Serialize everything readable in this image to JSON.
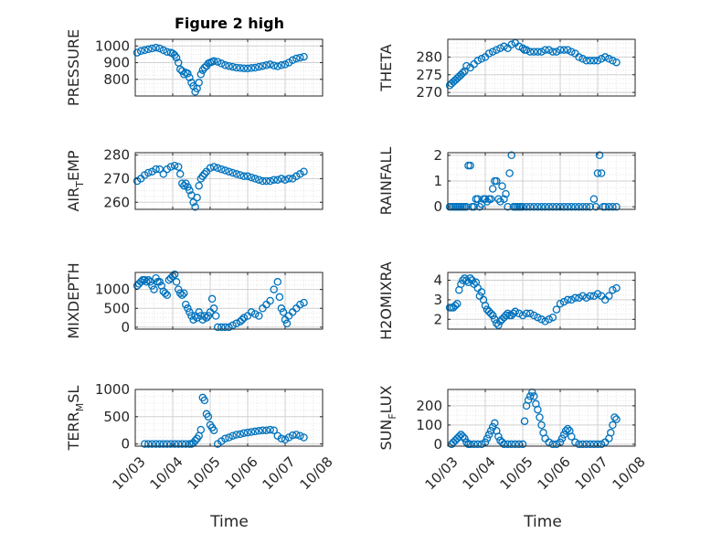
{
  "figure": {
    "title": "Figure 2 high",
    "xlabel_left": "Time",
    "xlabel_right": "Time"
  },
  "chart_data": [
    {
      "type": "scatter",
      "ylabel": "PRESSURE",
      "xlim": [
        0,
        5
      ],
      "xticks": [
        "10/03",
        "10/04",
        "10/05",
        "10/06",
        "10/07",
        "10/08"
      ],
      "ylim": [
        700,
        1040
      ],
      "yticks": [
        800,
        900,
        1000
      ],
      "grid": true,
      "marker_color": "#0072BD",
      "x": [
        0.05,
        0.15,
        0.25,
        0.35,
        0.45,
        0.55,
        0.65,
        0.75,
        0.85,
        0.95,
        1.0,
        1.05,
        1.1,
        1.15,
        1.2,
        1.25,
        1.3,
        1.35,
        1.4,
        1.45,
        1.5,
        1.55,
        1.6,
        1.65,
        1.7,
        1.75,
        1.8,
        1.85,
        1.9,
        1.95,
        2.0,
        2.05,
        2.1,
        2.2,
        2.3,
        2.4,
        2.5,
        2.6,
        2.7,
        2.8,
        2.9,
        3.0,
        3.1,
        3.2,
        3.3,
        3.4,
        3.5,
        3.6,
        3.7,
        3.8,
        3.9,
        4.0,
        4.1,
        4.2,
        4.3,
        4.4,
        4.5
      ],
      "y": [
        960,
        970,
        975,
        980,
        985,
        990,
        985,
        975,
        965,
        960,
        955,
        945,
        930,
        900,
        860,
        850,
        830,
        840,
        835,
        810,
        780,
        760,
        725,
        745,
        780,
        830,
        855,
        870,
        880,
        895,
        900,
        905,
        910,
        905,
        895,
        885,
        880,
        875,
        870,
        868,
        866,
        865,
        868,
        870,
        875,
        880,
        885,
        890,
        882,
        878,
        885,
        890,
        900,
        915,
        925,
        930,
        935
      ]
    },
    {
      "type": "scatter",
      "ylabel": "THETA",
      "xlim": [
        0,
        5
      ],
      "xticks": [
        "10/03",
        "10/04",
        "10/05",
        "10/06",
        "10/07",
        "10/08"
      ],
      "ylim": [
        269,
        285
      ],
      "yticks": [
        270,
        275,
        280
      ],
      "grid": true,
      "marker_color": "#0072BD",
      "x": [
        0.05,
        0.1,
        0.15,
        0.2,
        0.25,
        0.3,
        0.35,
        0.4,
        0.45,
        0.5,
        0.6,
        0.7,
        0.8,
        0.9,
        1.0,
        1.1,
        1.2,
        1.3,
        1.4,
        1.5,
        1.6,
        1.7,
        1.8,
        1.9,
        2.0,
        2.05,
        2.1,
        2.2,
        2.3,
        2.4,
        2.5,
        2.6,
        2.7,
        2.8,
        2.9,
        3.0,
        3.1,
        3.2,
        3.3,
        3.4,
        3.5,
        3.6,
        3.7,
        3.8,
        3.9,
        4.0,
        4.1,
        4.2,
        4.3,
        4.4,
        4.5
      ],
      "y": [
        272,
        272.5,
        273,
        273.5,
        274,
        274.5,
        275,
        275.5,
        276,
        277.5,
        277,
        278,
        279,
        279.5,
        280,
        281,
        281.5,
        282,
        282.5,
        283,
        282.5,
        283.5,
        284,
        283,
        282.5,
        282,
        282,
        281.5,
        281.5,
        281.5,
        281.5,
        282,
        282,
        281.5,
        281.5,
        282,
        282,
        282,
        281.5,
        281,
        280,
        279.5,
        279,
        279,
        279,
        279,
        279.5,
        280,
        279.5,
        279,
        278.5
      ]
    },
    {
      "type": "scatter",
      "ylabel": "AIR_TEMP",
      "xlim": [
        0,
        5
      ],
      "xticks": [
        "10/03",
        "10/04",
        "10/05",
        "10/06",
        "10/07",
        "10/08"
      ],
      "ylim": [
        257,
        281
      ],
      "yticks": [
        260,
        270,
        280
      ],
      "grid": true,
      "marker_color": "#0072BD",
      "x": [
        0.05,
        0.15,
        0.25,
        0.35,
        0.45,
        0.55,
        0.65,
        0.75,
        0.85,
        0.95,
        1.05,
        1.15,
        1.2,
        1.25,
        1.3,
        1.35,
        1.4,
        1.45,
        1.5,
        1.55,
        1.6,
        1.65,
        1.7,
        1.75,
        1.8,
        1.85,
        1.9,
        2.0,
        2.1,
        2.2,
        2.3,
        2.4,
        2.5,
        2.6,
        2.7,
        2.8,
        2.9,
        3.0,
        3.1,
        3.2,
        3.3,
        3.4,
        3.5,
        3.6,
        3.7,
        3.8,
        3.9,
        4.0,
        4.1,
        4.2,
        4.3,
        4.4,
        4.5
      ],
      "y": [
        269,
        270,
        271.5,
        272.5,
        273,
        274,
        274,
        272,
        274,
        275,
        275.5,
        275,
        272,
        268,
        267,
        268,
        266.5,
        265,
        263,
        260,
        258,
        262,
        267,
        270,
        271,
        272,
        273,
        274.5,
        275,
        274.5,
        274,
        273.5,
        273,
        272.5,
        272,
        271.5,
        271,
        271,
        270.5,
        270,
        269.5,
        269,
        269,
        269,
        269.5,
        269.5,
        270,
        269.5,
        270,
        270,
        271,
        272,
        273
      ]
    },
    {
      "type": "scatter",
      "ylabel": "RAINFALL",
      "xlim": [
        0,
        5
      ],
      "xticks": [
        "10/03",
        "10/04",
        "10/05",
        "10/06",
        "10/07",
        "10/08"
      ],
      "ylim": [
        -0.1,
        2.1
      ],
      "yticks": [
        0,
        1,
        2
      ],
      "grid": true,
      "marker_color": "#0072BD",
      "x": [
        0.05,
        0.1,
        0.15,
        0.2,
        0.25,
        0.3,
        0.35,
        0.4,
        0.45,
        0.5,
        0.55,
        0.6,
        0.65,
        0.7,
        0.75,
        0.8,
        0.85,
        0.9,
        0.95,
        1.0,
        1.05,
        1.1,
        1.15,
        1.2,
        1.25,
        1.3,
        1.35,
        1.4,
        1.45,
        1.5,
        1.55,
        1.6,
        1.65,
        1.7,
        1.75,
        1.8,
        1.85,
        1.9,
        1.95,
        2.0,
        2.1,
        2.2,
        2.3,
        2.4,
        2.5,
        2.6,
        2.7,
        2.8,
        2.9,
        3.0,
        3.1,
        3.2,
        3.3,
        3.4,
        3.5,
        3.6,
        3.7,
        3.8,
        3.9,
        3.95,
        4.0,
        4.05,
        4.1,
        4.15,
        4.2,
        4.3,
        4.4,
        4.5
      ],
      "y": [
        0,
        0,
        0,
        0,
        0,
        0,
        0,
        0,
        0,
        0,
        1.6,
        1.6,
        0,
        0,
        0.3,
        0.3,
        0,
        0.1,
        0.3,
        0.3,
        0.2,
        0.3,
        0.3,
        0.7,
        1.0,
        1.0,
        0.3,
        0.2,
        0.8,
        0.3,
        0.5,
        0,
        1.3,
        2.0,
        0,
        0,
        0,
        0,
        0,
        0,
        0,
        0,
        0,
        0,
        0,
        0,
        0,
        0,
        0,
        0,
        0,
        0,
        0,
        0,
        0,
        0,
        0,
        0,
        0.3,
        0,
        1.3,
        2.0,
        1.3,
        0,
        0,
        0,
        0,
        0
      ]
    },
    {
      "type": "scatter",
      "ylabel": "MIXDEPTH",
      "xlim": [
        0,
        5
      ],
      "xticks": [
        "10/03",
        "10/04",
        "10/05",
        "10/06",
        "10/07",
        "10/08"
      ],
      "ylim": [
        -50,
        1450
      ],
      "yticks": [
        0,
        500,
        1000
      ],
      "grid": true,
      "marker_color": "#0072BD",
      "x": [
        0.05,
        0.1,
        0.15,
        0.2,
        0.25,
        0.3,
        0.35,
        0.4,
        0.45,
        0.5,
        0.55,
        0.6,
        0.65,
        0.7,
        0.75,
        0.8,
        0.85,
        0.9,
        0.95,
        1.0,
        1.05,
        1.1,
        1.15,
        1.2,
        1.25,
        1.3,
        1.35,
        1.4,
        1.45,
        1.5,
        1.55,
        1.6,
        1.65,
        1.7,
        1.75,
        1.8,
        1.85,
        1.9,
        1.95,
        2.0,
        2.05,
        2.1,
        2.15,
        2.2,
        2.3,
        2.4,
        2.5,
        2.6,
        2.7,
        2.8,
        2.85,
        2.9,
        3.0,
        3.1,
        3.2,
        3.3,
        3.4,
        3.5,
        3.6,
        3.7,
        3.8,
        3.85,
        3.9,
        3.95,
        4.0,
        4.05,
        4.1,
        4.2,
        4.3,
        4.4,
        4.5
      ],
      "y": [
        1100,
        1150,
        1200,
        1250,
        1250,
        1200,
        1250,
        1200,
        1100,
        1000,
        1300,
        1200,
        1200,
        1100,
        950,
        900,
        850,
        1250,
        1300,
        1350,
        1400,
        1200,
        1000,
        900,
        850,
        900,
        600,
        500,
        400,
        300,
        200,
        300,
        250,
        400,
        300,
        200,
        300,
        250,
        300,
        400,
        750,
        500,
        300,
        0,
        0,
        0,
        0,
        50,
        100,
        150,
        200,
        250,
        300,
        400,
        350,
        300,
        500,
        600,
        700,
        1000,
        1200,
        800,
        500,
        400,
        200,
        100,
        300,
        400,
        500,
        600,
        650
      ]
    },
    {
      "type": "scatter",
      "ylabel": "H2OMIXRA",
      "xlim": [
        0,
        5
      ],
      "xticks": [
        "10/03",
        "10/04",
        "10/05",
        "10/06",
        "10/07",
        "10/08"
      ],
      "ylim": [
        1.5,
        4.4
      ],
      "yticks": [
        2,
        3,
        4
      ],
      "grid": true,
      "marker_color": "#0072BD",
      "x": [
        0.05,
        0.1,
        0.15,
        0.2,
        0.25,
        0.3,
        0.35,
        0.4,
        0.45,
        0.5,
        0.55,
        0.6,
        0.65,
        0.7,
        0.75,
        0.8,
        0.85,
        0.9,
        0.95,
        1.0,
        1.05,
        1.1,
        1.15,
        1.2,
        1.25,
        1.3,
        1.35,
        1.4,
        1.45,
        1.5,
        1.55,
        1.6,
        1.65,
        1.7,
        1.75,
        1.8,
        1.9,
        2.0,
        2.1,
        2.2,
        2.3,
        2.4,
        2.5,
        2.6,
        2.7,
        2.8,
        2.9,
        3.0,
        3.1,
        3.2,
        3.3,
        3.4,
        3.5,
        3.6,
        3.7,
        3.8,
        3.9,
        4.0,
        4.1,
        4.2,
        4.3,
        4.4,
        4.5
      ],
      "y": [
        2.6,
        2.6,
        2.6,
        2.7,
        2.8,
        3.5,
        3.8,
        4.0,
        4.1,
        4.0,
        3.9,
        4.1,
        4.0,
        3.8,
        3.9,
        3.6,
        3.2,
        3.4,
        3.0,
        2.7,
        2.5,
        2.4,
        2.3,
        2.2,
        2.0,
        1.8,
        1.7,
        1.9,
        2.0,
        2.1,
        2.2,
        2.3,
        2.2,
        2.2,
        2.3,
        2.4,
        2.3,
        2.2,
        2.3,
        2.3,
        2.2,
        2.1,
        2.0,
        1.9,
        2.0,
        2.1,
        2.5,
        2.8,
        2.9,
        3.0,
        3.0,
        3.1,
        3.1,
        3.2,
        3.1,
        3.2,
        3.2,
        3.3,
        3.2,
        3.0,
        3.2,
        3.5,
        3.6
      ]
    },
    {
      "type": "scatter",
      "ylabel": "TERR_MSL",
      "xlim": [
        0,
        5
      ],
      "xticks": [
        "10/03",
        "10/04",
        "10/05",
        "10/06",
        "10/07",
        "10/08"
      ],
      "ylim": [
        -40,
        1000
      ],
      "yticks": [
        0,
        500,
        1000
      ],
      "grid": true,
      "marker_color": "#0072BD",
      "x": [
        0.25,
        0.35,
        0.45,
        0.55,
        0.65,
        0.75,
        0.85,
        0.95,
        1.05,
        1.15,
        1.25,
        1.35,
        1.45,
        1.5,
        1.55,
        1.6,
        1.65,
        1.7,
        1.75,
        1.8,
        1.85,
        1.9,
        1.95,
        2.0,
        2.05,
        2.1,
        2.2,
        2.3,
        2.4,
        2.5,
        2.6,
        2.7,
        2.8,
        2.9,
        3.0,
        3.1,
        3.2,
        3.3,
        3.4,
        3.5,
        3.6,
        3.7,
        3.8,
        3.9,
        4.0,
        4.1,
        4.2,
        4.3,
        4.4,
        4.5
      ],
      "y": [
        0,
        0,
        0,
        0,
        0,
        0,
        0,
        0,
        0,
        0,
        0,
        0,
        0,
        0,
        20,
        60,
        100,
        150,
        260,
        850,
        800,
        550,
        500,
        350,
        300,
        250,
        0,
        50,
        100,
        120,
        150,
        170,
        180,
        200,
        210,
        220,
        230,
        240,
        250,
        250,
        260,
        250,
        150,
        100,
        80,
        120,
        160,
        170,
        150,
        120
      ]
    },
    {
      "type": "scatter",
      "ylabel": "SUN_FLUX",
      "xlim": [
        0,
        5
      ],
      "xticks": [
        "10/03",
        "10/04",
        "10/05",
        "10/06",
        "10/07",
        "10/08"
      ],
      "ylim": [
        -10,
        285
      ],
      "yticks": [
        0,
        100,
        200
      ],
      "grid": true,
      "marker_color": "#0072BD",
      "x": [
        0.1,
        0.15,
        0.2,
        0.25,
        0.3,
        0.35,
        0.4,
        0.45,
        0.5,
        0.55,
        0.6,
        0.7,
        0.8,
        0.9,
        1.0,
        1.05,
        1.1,
        1.15,
        1.2,
        1.25,
        1.3,
        1.35,
        1.4,
        1.45,
        1.5,
        1.6,
        1.7,
        1.8,
        1.9,
        2.0,
        2.05,
        2.1,
        2.15,
        2.2,
        2.25,
        2.3,
        2.35,
        2.4,
        2.45,
        2.5,
        2.55,
        2.6,
        2.7,
        2.8,
        2.9,
        3.0,
        3.05,
        3.1,
        3.15,
        3.2,
        3.25,
        3.3,
        3.4,
        3.5,
        3.6,
        3.7,
        3.8,
        3.9,
        4.0,
        4.1,
        4.2,
        4.3,
        4.35,
        4.4,
        4.45,
        4.5
      ],
      "y": [
        0,
        10,
        20,
        30,
        40,
        50,
        40,
        30,
        10,
        0,
        0,
        0,
        0,
        0,
        10,
        30,
        50,
        70,
        90,
        110,
        70,
        40,
        20,
        10,
        0,
        0,
        0,
        0,
        0,
        0,
        120,
        200,
        230,
        250,
        270,
        250,
        210,
        180,
        140,
        100,
        60,
        30,
        10,
        0,
        0,
        10,
        30,
        50,
        70,
        80,
        70,
        40,
        10,
        0,
        0,
        0,
        0,
        0,
        0,
        0,
        10,
        30,
        60,
        100,
        140,
        130
      ]
    }
  ]
}
